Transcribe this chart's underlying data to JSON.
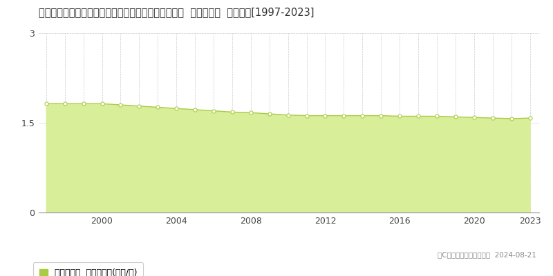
{
  "title": "福島県南会津郡下郷町大字落合字下ノ原８４８番９外  基準地価格  地価推移[1997-2023]",
  "years": [
    1997,
    1998,
    1999,
    2000,
    2001,
    2002,
    2003,
    2004,
    2005,
    2006,
    2007,
    2008,
    2009,
    2010,
    2011,
    2012,
    2013,
    2014,
    2015,
    2016,
    2017,
    2018,
    2019,
    2020,
    2021,
    2022,
    2023
  ],
  "values": [
    1.82,
    1.82,
    1.82,
    1.82,
    1.8,
    1.78,
    1.76,
    1.74,
    1.72,
    1.7,
    1.68,
    1.67,
    1.65,
    1.63,
    1.62,
    1.62,
    1.62,
    1.62,
    1.62,
    1.61,
    1.61,
    1.61,
    1.6,
    1.59,
    1.58,
    1.57,
    1.58
  ],
  "line_color": "#aacc44",
  "fill_color": "#d8ee99",
  "marker_facecolor": "#ffffff",
  "marker_edgecolor": "#aacc44",
  "background_color": "#ffffff",
  "grid_color": "#cccccc",
  "ylim": [
    0,
    3
  ],
  "ytick_positions": [
    0,
    1.5,
    3
  ],
  "ytick_labels": [
    "0",
    "1.5",
    "3"
  ],
  "xtick_positions": [
    1997,
    2000,
    2004,
    2008,
    2012,
    2016,
    2020,
    2023
  ],
  "xtick_labels": [
    "",
    "2000",
    "2004",
    "2008",
    "2012",
    "2016",
    "2020",
    "2023"
  ],
  "legend_label": "基準地価格  平均坪単価(万円/坪)",
  "legend_color": "#aacc44",
  "copyright_text": "（C）土地価格ドットコム  2024-08-21",
  "title_fontsize": 10.5,
  "axis_fontsize": 9,
  "legend_fontsize": 9,
  "xlim_left": 1996.6,
  "xlim_right": 2023.5
}
